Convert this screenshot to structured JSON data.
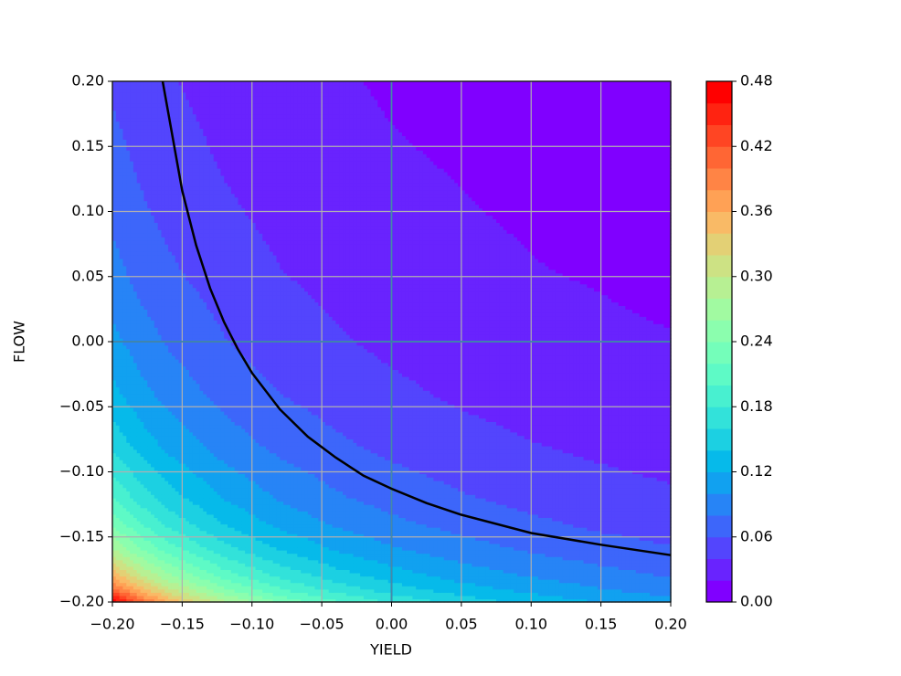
{
  "chart_data": {
    "type": "contourf",
    "xlabel": "YIELD",
    "ylabel": "FLOW",
    "colormap": "rainbow",
    "x": [
      -0.2,
      -0.18,
      -0.16,
      -0.12,
      -0.08,
      -0.04,
      0,
      0.05,
      0.1,
      0.15,
      0.2
    ],
    "y": [
      -0.2,
      -0.19,
      -0.18,
      -0.16,
      -0.14,
      -0.12,
      -0.08,
      -0.04,
      0,
      0.05,
      0.1,
      0.15,
      0.2
    ],
    "z": [
      [
        0.48,
        0.411,
        0.359,
        0.286,
        0.238,
        0.203,
        0.177,
        0.152,
        0.134,
        0.119,
        0.107
      ],
      [
        0.41,
        0.351,
        0.306,
        0.244,
        0.202,
        0.173,
        0.15,
        0.129,
        0.114,
        0.101,
        0.091
      ],
      [
        0.357,
        0.306,
        0.267,
        0.212,
        0.176,
        0.15,
        0.131,
        0.112,
        0.099,
        0.088,
        0.079
      ],
      [
        0.284,
        0.243,
        0.212,
        0.168,
        0.14,
        0.119,
        0.103,
        0.089,
        0.078,
        0.069,
        0.062
      ],
      [
        0.236,
        0.201,
        0.175,
        0.139,
        0.115,
        0.098,
        0.085,
        0.073,
        0.064,
        0.056,
        0.051
      ],
      [
        0.201,
        0.172,
        0.149,
        0.119,
        0.098,
        0.083,
        0.072,
        0.062,
        0.054,
        0.048,
        0.043
      ],
      [
        0.155,
        0.132,
        0.115,
        0.091,
        0.075,
        0.064,
        0.055,
        0.047,
        0.041,
        0.036,
        0.032
      ],
      [
        0.126,
        0.107,
        0.093,
        0.073,
        0.06,
        0.051,
        0.044,
        0.037,
        0.032,
        0.028,
        0.025
      ],
      [
        0.106,
        0.09,
        0.078,
        0.061,
        0.05,
        0.042,
        0.036,
        0.031,
        0.027,
        0.023,
        0.021
      ],
      [
        0.088,
        0.074,
        0.064,
        0.051,
        0.041,
        0.035,
        0.03,
        0.025,
        0.021,
        0.019,
        0.016
      ],
      [
        0.075,
        0.063,
        0.055,
        0.043,
        0.035,
        0.029,
        0.025,
        0.021,
        0.018,
        0.015,
        0.013
      ],
      [
        0.065,
        0.055,
        0.048,
        0.037,
        0.03,
        0.025,
        0.021,
        0.018,
        0.015,
        0.013,
        0.011
      ],
      [
        0.057,
        0.049,
        0.042,
        0.032,
        0.026,
        0.022,
        0.018,
        0.015,
        0.013,
        0.011,
        0.009
      ]
    ],
    "levels": [
      0,
      0.02,
      0.04,
      0.06,
      0.08,
      0.1,
      0.12,
      0.14,
      0.16,
      0.18,
      0.2,
      0.22,
      0.24,
      0.26,
      0.28,
      0.3,
      0.32,
      0.34,
      0.36,
      0.38,
      0.4,
      0.42,
      0.44,
      0.46,
      0.48
    ],
    "xlim": [
      -0.2,
      0.2
    ],
    "ylim": [
      -0.2,
      0.2
    ],
    "xticks": [
      {
        "value": -0.2,
        "label": "−0.20"
      },
      {
        "value": -0.15,
        "label": "−0.15"
      },
      {
        "value": -0.1,
        "label": "−0.10"
      },
      {
        "value": -0.05,
        "label": "−0.05"
      },
      {
        "value": 0,
        "label": "0.00"
      },
      {
        "value": 0.05,
        "label": "0.05"
      },
      {
        "value": 0.1,
        "label": "0.10"
      },
      {
        "value": 0.15,
        "label": "0.15"
      },
      {
        "value": 0.2,
        "label": "0.20"
      }
    ],
    "yticks": [
      {
        "value": -0.2,
        "label": "−0.20"
      },
      {
        "value": -0.15,
        "label": "−0.15"
      },
      {
        "value": -0.1,
        "label": "−0.10"
      },
      {
        "value": -0.05,
        "label": "−0.05"
      },
      {
        "value": 0,
        "label": "0.00"
      },
      {
        "value": 0.05,
        "label": "0.05"
      },
      {
        "value": 0.1,
        "label": "0.10"
      },
      {
        "value": 0.15,
        "label": "0.15"
      },
      {
        "value": 0.2,
        "label": "0.20"
      }
    ],
    "colorbar_ticks": [
      {
        "value": 0,
        "label": "0.00"
      },
      {
        "value": 0.06,
        "label": "0.06"
      },
      {
        "value": 0.12,
        "label": "0.12"
      },
      {
        "value": 0.18,
        "label": "0.18"
      },
      {
        "value": 0.24,
        "label": "0.24"
      },
      {
        "value": 0.3,
        "label": "0.30"
      },
      {
        "value": 0.36,
        "label": "0.36"
      },
      {
        "value": 0.42,
        "label": "0.42"
      },
      {
        "value": 0.48,
        "label": "0.48"
      }
    ],
    "grid": true,
    "grid_color": "#b0b0b0",
    "zero_line_color": "#2f7fa8",
    "curve": {
      "color": "#000000",
      "x": [
        -0.164,
        -0.15,
        -0.14,
        -0.13,
        -0.12,
        -0.11,
        -0.1,
        -0.08,
        -0.06,
        -0.04,
        -0.02,
        0,
        0.025,
        0.05,
        0.1,
        0.15,
        0.2
      ],
      "y": [
        0.2,
        0.116,
        0.074,
        0.041,
        0.015,
        -0.006,
        -0.024,
        -0.052,
        -0.073,
        -0.089,
        -0.103,
        -0.113,
        -0.124,
        -0.133,
        -0.147,
        -0.156,
        -0.164
      ]
    }
  }
}
